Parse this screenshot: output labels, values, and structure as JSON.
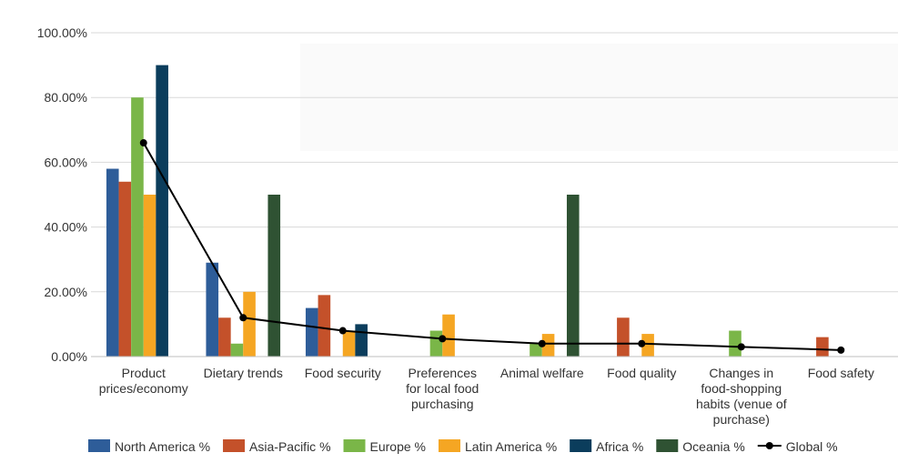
{
  "chart_data": {
    "type": "bar",
    "title": "",
    "xlabel": "",
    "ylabel": "",
    "ylim": [
      0,
      100
    ],
    "yticks": [
      "0.00%",
      "20.00%",
      "40.00%",
      "60.00%",
      "80.00%",
      "100.00%"
    ],
    "categories": [
      [
        "Product",
        "prices/economy"
      ],
      [
        "Dietary trends"
      ],
      [
        "Food security"
      ],
      [
        "Preferences",
        "for local food",
        "purchasing"
      ],
      [
        "Animal welfare"
      ],
      [
        "Food quality"
      ],
      [
        "Changes in",
        "food-shopping",
        "habits (venue of",
        "purchase)"
      ],
      [
        "Food safety"
      ]
    ],
    "series": [
      {
        "name": "North America %",
        "color": "#2e5d99",
        "values": [
          58,
          29,
          15,
          0,
          0,
          0,
          0,
          0
        ]
      },
      {
        "name": "Asia-Pacific %",
        "color": "#c4512a",
        "values": [
          54,
          12,
          19,
          0,
          0,
          12,
          0,
          6
        ]
      },
      {
        "name": "Europe %",
        "color": "#7ab648",
        "values": [
          80,
          4,
          0,
          8,
          4,
          0,
          8,
          0
        ]
      },
      {
        "name": "Latin America %",
        "color": "#f5a623",
        "values": [
          50,
          20,
          8,
          13,
          7,
          7,
          0,
          0
        ]
      },
      {
        "name": "Africa %",
        "color": "#0b3d5c",
        "values": [
          90,
          0,
          10,
          0,
          0,
          0,
          0,
          0
        ]
      },
      {
        "name": "Oceania %",
        "color": "#2f5233",
        "values": [
          0,
          50,
          0,
          0,
          50,
          0,
          0,
          0
        ]
      }
    ],
    "line": {
      "name": "Global %",
      "color": "#000000",
      "values": [
        66,
        12,
        8,
        5.5,
        4,
        4,
        3,
        2
      ]
    }
  }
}
